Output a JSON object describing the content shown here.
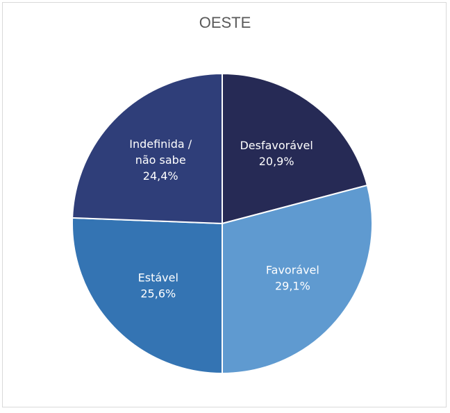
{
  "chart_data": {
    "type": "pie",
    "title": "OESTE",
    "slices": [
      {
        "label": "Desfavorável",
        "value": 20.9,
        "value_text": "20,9%",
        "color": "#262a55"
      },
      {
        "label": "Favorável",
        "value": 29.1,
        "value_text": "29,1%",
        "color": "#5f9ad0"
      },
      {
        "label": "Estável",
        "value": 25.6,
        "value_text": "25,6%",
        "color": "#3474b3"
      },
      {
        "label": "Indefinida / não sabe",
        "label_lines": [
          "Indefinida /",
          "não sabe"
        ],
        "value": 24.4,
        "value_text": "24,4%",
        "color": "#2f3e79"
      }
    ],
    "start_angle_deg": 0,
    "direction": "clockwise",
    "legend": "none",
    "slice_border_color": "#ffffff"
  }
}
